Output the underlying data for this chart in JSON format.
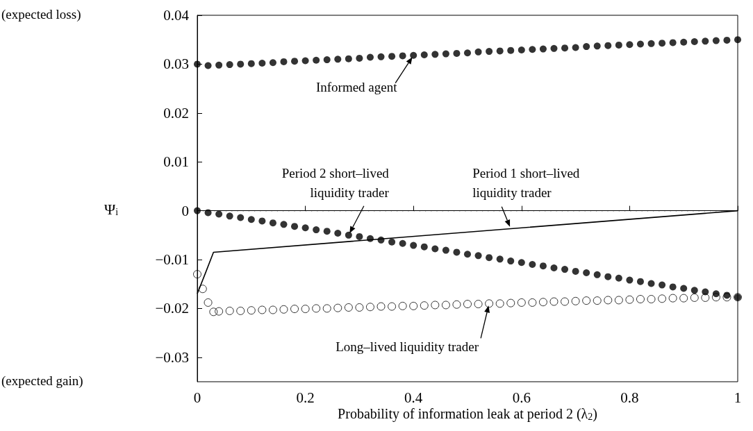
{
  "chart_data": {
    "type": "scatter",
    "xlabel": "Probability of information leak at period 2 (λ$_{2}$)",
    "ylabel": "Ψ$_{i}$",
    "xlim": [
      0,
      1
    ],
    "xticks": [
      0,
      0.2,
      0.4,
      0.6,
      0.8,
      1
    ],
    "ylim": [
      -0.035,
      0.04
    ],
    "yticks": [
      {
        "value": -0.03,
        "label": "−0.03"
      },
      {
        "value": -0.02,
        "label": "−0.02"
      },
      {
        "value": -0.01,
        "label": "−0.01"
      },
      0,
      0.01,
      0.02,
      0.03,
      0.04
    ],
    "grid": false,
    "marker": "circle",
    "ref_lines": [
      {
        "axis": "y",
        "value": 0,
        "line_style": "dotted",
        "color": "#000000"
      }
    ],
    "annotations": [
      {
        "text": "Informed agent",
        "x": 0.4,
        "y": 0.0318
      },
      {
        "text": "Period 2 short–lived\nliquidity trader",
        "x": 0.28,
        "y": -0.005
      },
      {
        "text": "Period 1 short–lived\nliquidity trader",
        "x": 0.58,
        "y": -0.0037
      },
      {
        "text": "Long–lived liquidity trader",
        "x": 0.54,
        "y": -0.019
      },
      "(expected loss)",
      "(expected gain)"
    ],
    "x": [
      0,
      0.02,
      0.04,
      0.06,
      0.08,
      0.1,
      0.12,
      0.14,
      0.16,
      0.18,
      0.2,
      0.22,
      0.24,
      0.26,
      0.28,
      0.3,
      0.32,
      0.34,
      0.36,
      0.38,
      0.4,
      0.42,
      0.44,
      0.46,
      0.48,
      0.5,
      0.52,
      0.54,
      0.56,
      0.58,
      0.6,
      0.62,
      0.64,
      0.66,
      0.68,
      0.7,
      0.72,
      0.74,
      0.76,
      0.78,
      0.8,
      0.82,
      0.84,
      0.86,
      0.88,
      0.9,
      0.92,
      0.94,
      0.96,
      0.98,
      1
    ],
    "series": [
      {
        "color": "#000000",
        "values": [
          0.03,
          0.0297,
          0.0298,
          0.0299,
          0.03,
          0.0301,
          0.0302,
          0.0303,
          0.0305,
          0.0306,
          0.0307,
          0.0308,
          0.0309,
          0.031,
          0.0311,
          0.0312,
          0.0314,
          0.0315,
          0.0316,
          0.0317,
          0.0318,
          0.0319,
          0.032,
          0.0321,
          0.0322,
          0.0323,
          0.0325,
          0.0326,
          0.0327,
          0.0328,
          0.0329,
          0.033,
          0.0331,
          0.0332,
          0.0333,
          0.0334,
          0.0336,
          0.0337,
          0.0338,
          0.0339,
          0.034,
          0.0341,
          0.0342,
          0.0343,
          0.0344,
          0.0345,
          0.0346,
          0.0347,
          0.0348,
          0.0349,
          0.035
        ]
      },
      {
        "color": "#000000",
        "values": [
          0,
          -0.0004,
          -0.0007,
          -0.0011,
          -0.0014,
          -0.0018,
          -0.0021,
          -0.0025,
          -0.0028,
          -0.0032,
          -0.0035,
          -0.0039,
          -0.0042,
          -0.0046,
          -0.005,
          -0.0053,
          -0.0057,
          -0.006,
          -0.0064,
          -0.0067,
          -0.0071,
          -0.0074,
          -0.0078,
          -0.0081,
          -0.0085,
          -0.0089,
          -0.0092,
          -0.0096,
          -0.0099,
          -0.0103,
          -0.0106,
          -0.011,
          -0.0113,
          -0.0117,
          -0.012,
          -0.0124,
          -0.0127,
          -0.0131,
          -0.0135,
          -0.0138,
          -0.0142,
          -0.0145,
          -0.0149,
          -0.0152,
          -0.0156,
          -0.0159,
          -0.0163,
          -0.0166,
          -0.017,
          -0.0173,
          -0.0177
        ]
      },
      {
        "type": "line",
        "color": "#000000",
        "marker": "none",
        "line_style": "solid",
        "x": [
          0,
          0.016,
          0.03,
          1
        ],
        "values": [
          -0.017,
          -0.0125,
          -0.0085,
          0
        ]
      },
      {
        "color": "#000000",
        "x": [
          0,
          0.01,
          0.02,
          0.03,
          0.04,
          0.06,
          0.08,
          0.1,
          0.12,
          0.14,
          0.16,
          0.18,
          0.2,
          0.22,
          0.24,
          0.26,
          0.28,
          0.3,
          0.32,
          0.34,
          0.36,
          0.38,
          0.4,
          0.42,
          0.44,
          0.46,
          0.48,
          0.5,
          0.52,
          0.54,
          0.56,
          0.58,
          0.6,
          0.62,
          0.64,
          0.66,
          0.68,
          0.7,
          0.72,
          0.74,
          0.76,
          0.78,
          0.8,
          0.82,
          0.84,
          0.86,
          0.88,
          0.9,
          0.92,
          0.94,
          0.96,
          0.98,
          1
        ],
        "values": [
          -0.013,
          -0.016,
          -0.0188,
          -0.0207,
          -0.0206,
          -0.0205,
          -0.0205,
          -0.0204,
          -0.0203,
          -0.0203,
          -0.0202,
          -0.0201,
          -0.0201,
          -0.02,
          -0.02,
          -0.0199,
          -0.0198,
          -0.0198,
          -0.0197,
          -0.0196,
          -0.0196,
          -0.0195,
          -0.0195,
          -0.0194,
          -0.0193,
          -0.0193,
          -0.0192,
          -0.0191,
          -0.0191,
          -0.019,
          -0.019,
          -0.0189,
          -0.0188,
          -0.0188,
          -0.0187,
          -0.0186,
          -0.0186,
          -0.0185,
          -0.0184,
          -0.0184,
          -0.0183,
          -0.0183,
          -0.0182,
          -0.0181,
          -0.0181,
          -0.018,
          -0.0179,
          -0.0179,
          -0.0178,
          -0.0178,
          -0.0177,
          -0.0177,
          -0.0177
        ]
      }
    ]
  }
}
